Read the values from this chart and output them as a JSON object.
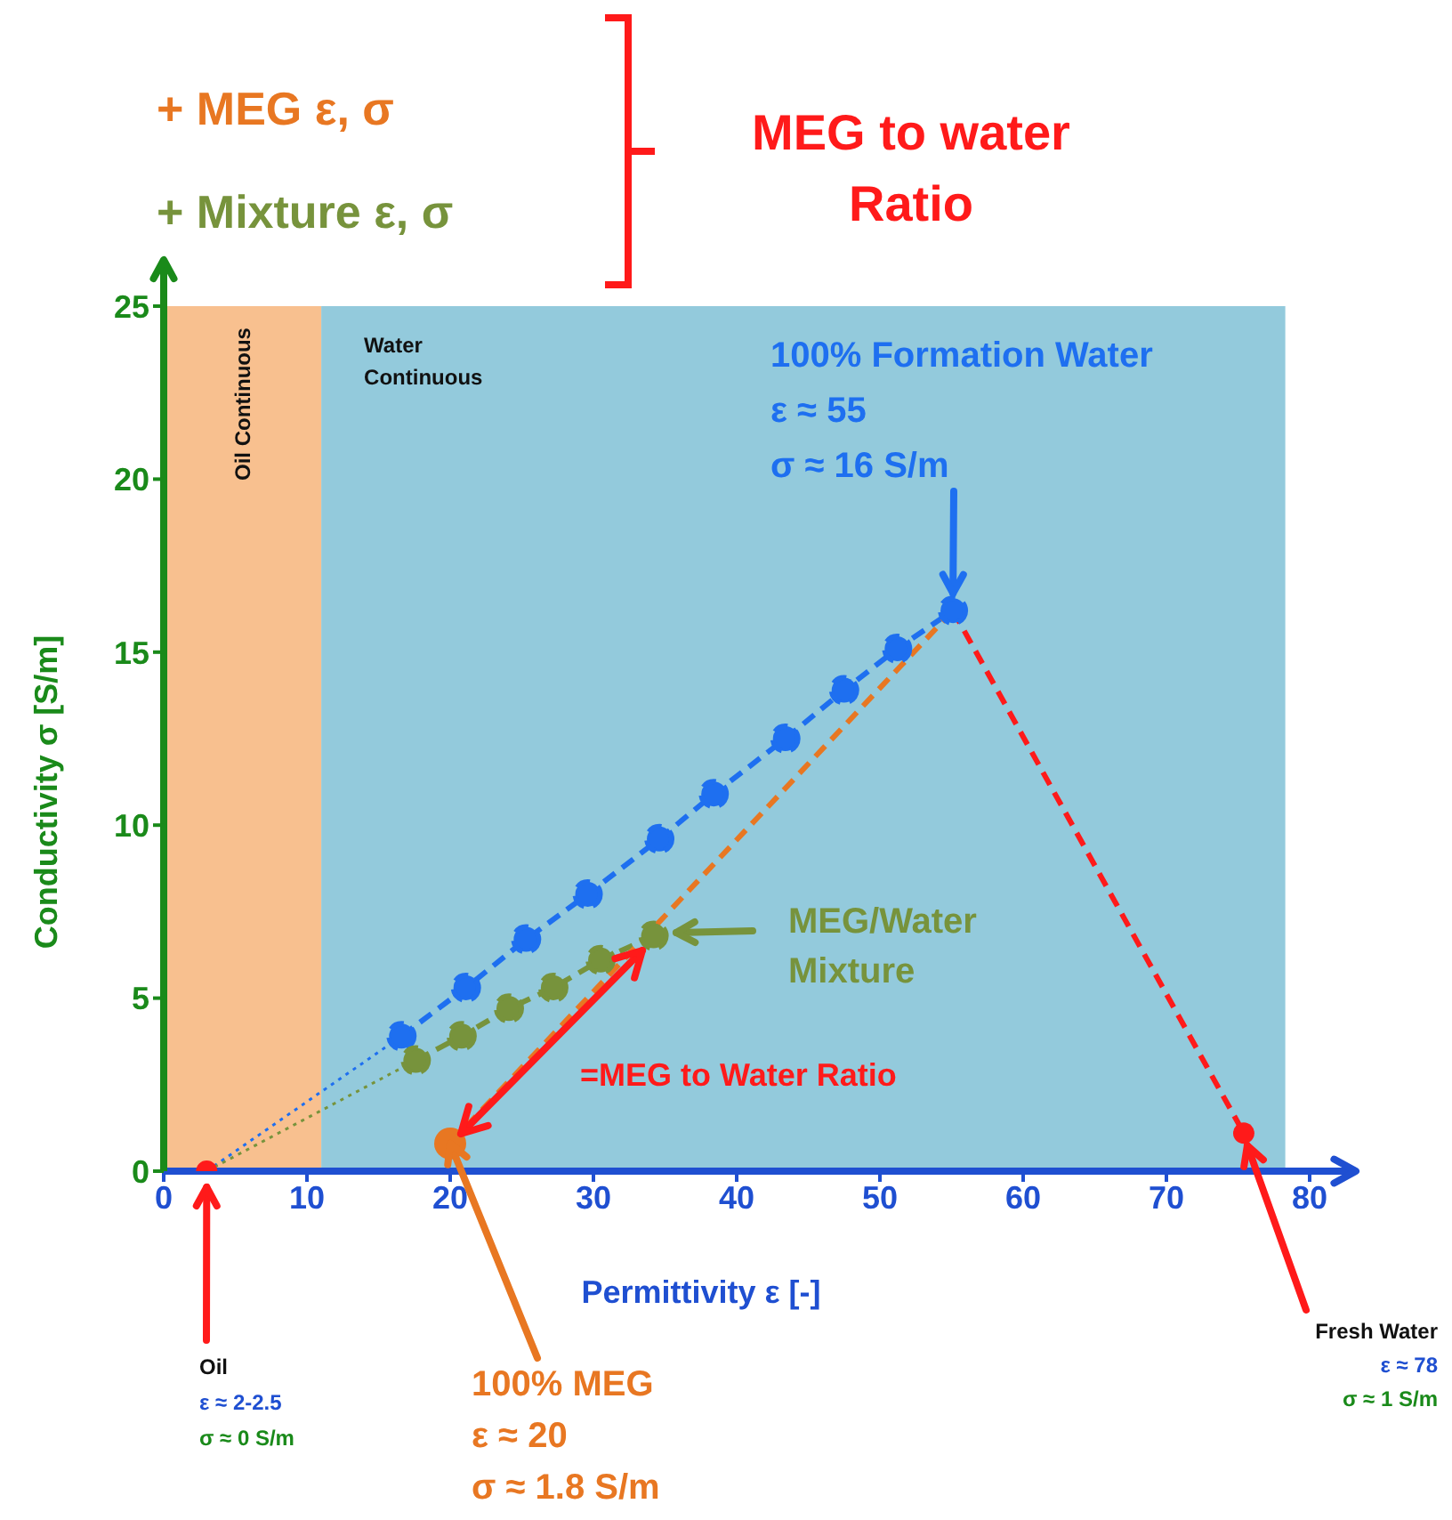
{
  "chart_data": {
    "type": "line",
    "xlabel": "Permittivity ε [-]",
    "ylabel": "Conductivity σ [S/m]",
    "xlim": [
      0,
      80
    ],
    "xticks": [
      0,
      10,
      20,
      30,
      40,
      50,
      60,
      70,
      80
    ],
    "ylim": [
      0,
      25
    ],
    "yticks": [
      0,
      5,
      10,
      15,
      20,
      25
    ],
    "bands": [
      {
        "axis": "x",
        "from": 0,
        "to": 11,
        "label": "Oil Continuous",
        "color": "#f8c08f"
      },
      {
        "axis": "x",
        "from": 11,
        "to": 78.3,
        "label": "Water Continuous",
        "color": "#93cadc"
      }
    ],
    "series": [
      {
        "color": "#1e6ff0",
        "line_style": "dotted",
        "x": [
          3,
          16.6
        ],
        "values": [
          0,
          3.9
        ]
      },
      {
        "type": "line",
        "color": "#1e6ff0",
        "line_style": "dashed",
        "marker": "circle",
        "x": [
          16.6,
          21.1,
          25.3,
          29.6,
          34.6,
          38.4,
          43.4,
          47.5,
          51.2,
          55.1
        ],
        "values": [
          3.9,
          5.3,
          6.7,
          8.0,
          9.6,
          10.9,
          12.5,
          13.9,
          15.1,
          16.2
        ]
      },
      {
        "color": "#77933c",
        "line_style": "dotted",
        "x": [
          3,
          17.6
        ],
        "values": [
          0,
          3.2
        ]
      },
      {
        "type": "line",
        "color": "#77933c",
        "line_style": "dashed",
        "marker": "circle",
        "x": [
          17.6,
          20.8,
          24.1,
          27.2,
          30.5,
          34.2
        ],
        "values": [
          3.2,
          3.9,
          4.7,
          5.3,
          6.1,
          6.8
        ]
      },
      {
        "type": "line",
        "color": "#e87722",
        "line_style": "dashed",
        "marker": "none",
        "x": [
          20,
          55.1
        ],
        "values": [
          0.8,
          16.2
        ]
      },
      {
        "type": "line",
        "color": "#ff1a1a",
        "line_style": "dashed",
        "marker": "none",
        "x": [
          55.1,
          75.4
        ],
        "values": [
          16.2,
          1.1
        ]
      },
      {
        "type": "scatter",
        "x": [
          3,
          20,
          75.4
        ],
        "values": [
          0,
          0.8,
          1.1
        ],
        "colors": [
          "#ff1a1a",
          "#e87722",
          "#ff1a1a"
        ],
        "sizes": [
          0.44,
          1,
          0.44
        ]
      }
    ],
    "annotations": [
      "+ MEG ε, σ",
      "+ Mixture ε, σ",
      "MEG to water\nRatio",
      {
        "text": "100% Formation Water\nε ≈ 55\nσ ≈ 16 S/m",
        "x": 55.1,
        "y": 16.7
      },
      "MEG/Water\nMixture",
      "=MEG to Water Ratio",
      {
        "text": "Oil\nε ≈ 2-2.5\nσ ≈ 0 S/m",
        "x": 3,
        "y": 0
      },
      {
        "text": "100% MEG\nε ≈ 20\nσ ≈ 1.8 S/m",
        "x": 20,
        "y": 0.8
      },
      {
        "text": "Fresh Water\nε ≈ 78\nσ ≈ 1 S/m",
        "x": 75.4,
        "y": 1.1
      }
    ]
  }
}
